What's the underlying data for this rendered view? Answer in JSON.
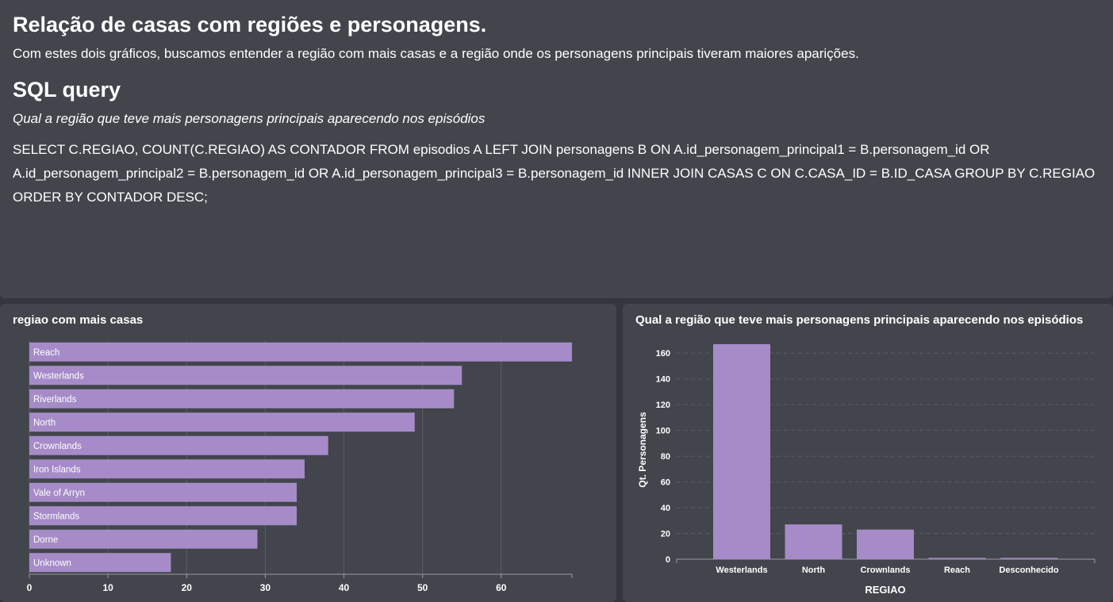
{
  "header": {
    "title": "Relação de casas com regiões e personagens.",
    "subtitle": "Com estes dois gráficos, buscamos entender a região com mais casas e a região onde os personagens principais tiveram maiores aparições.",
    "section_title": "SQL query",
    "question": "Qual a região que teve mais personagens principais aparecendo nos episódios",
    "sql": "SELECT C.REGIAO, COUNT(C.REGIAO) AS CONTADOR FROM episodios A LEFT JOIN personagens B ON A.id_personagem_principal1 = B.personagem_id OR A.id_personagem_principal2 = B.personagem_id OR A.id_personagem_principal3 = B.personagem_id INNER JOIN CASAS C ON C.CASA_ID = B.ID_CASA GROUP BY C.REGIAO ORDER BY CONTADOR DESC;"
  },
  "colors": {
    "bar": "#a68bc8",
    "grid": "#5a5d63",
    "text": "#ffffff"
  },
  "chart_data": [
    {
      "type": "bar",
      "orientation": "horizontal",
      "title": "regiao com mais casas",
      "categories": [
        "Reach",
        "Westerlands",
        "Riverlands",
        "North",
        "Crownlands",
        "Iron Islands",
        "Vale of Arryn",
        "Stormlands",
        "Dorne",
        "Unknown"
      ],
      "values": [
        69,
        55,
        54,
        49,
        38,
        35,
        34,
        34,
        29,
        18
      ],
      "xlim": [
        0,
        69
      ],
      "xticks": [
        "0",
        "10",
        "20",
        "30",
        "40",
        "50",
        "60"
      ],
      "xtick_values": [
        0,
        10,
        20,
        30,
        40,
        50,
        60
      ],
      "grid": true
    },
    {
      "type": "bar",
      "orientation": "vertical",
      "title": "Qual a região que teve mais personagens principais aparecendo nos episódios",
      "categories": [
        "Westerlands",
        "North",
        "Crownlands",
        "Reach",
        "Desconhecido"
      ],
      "values": [
        167,
        27,
        23,
        1,
        1
      ],
      "xlabel": "REGIAO",
      "ylabel": "Qt. Personagens",
      "ylim": [
        0,
        170
      ],
      "yticks": [
        "0",
        "20",
        "40",
        "60",
        "80",
        "100",
        "120",
        "140",
        "160"
      ],
      "ytick_values": [
        0,
        20,
        40,
        60,
        80,
        100,
        120,
        140,
        160
      ],
      "grid": true
    }
  ]
}
